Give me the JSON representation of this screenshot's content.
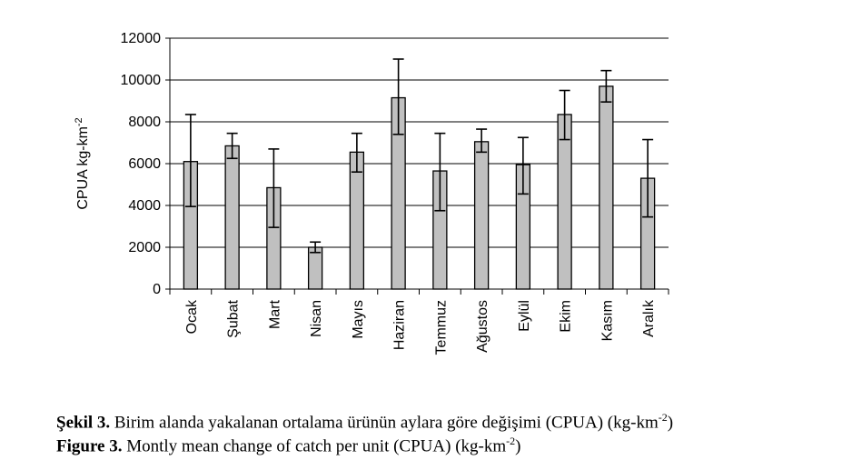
{
  "chart_data": {
    "type": "bar",
    "ylabel": "CPUA kg-km",
    "ylabel_sup": "-2",
    "ylim": [
      0,
      12000
    ],
    "yticks": [
      "0",
      "2000",
      "4000",
      "6000",
      "8000",
      "10000",
      "12000"
    ],
    "grid": true,
    "categories": [
      "Ocak",
      "Şubat",
      "Mart",
      "Nisan",
      "Mayıs",
      "Haziran",
      "Temmuz",
      "Ağustos",
      "Eylül",
      "Ekim",
      "Kasım",
      "Aralık"
    ],
    "values": [
      6100,
      6850,
      4850,
      2000,
      6550,
      9150,
      5650,
      7050,
      5950,
      8350,
      9700,
      5300
    ],
    "error_low": [
      3950,
      6250,
      2950,
      1750,
      5600,
      7400,
      3750,
      6550,
      4550,
      7150,
      8950,
      3450
    ],
    "error_high": [
      8350,
      7450,
      6700,
      2250,
      7450,
      11000,
      7450,
      7650,
      7250,
      9500,
      10450,
      7150
    ],
    "bar_color": "#c0c0c0"
  },
  "caption": {
    "line1_bold": "Şekil 3.",
    "line1_text": " Birim alanda yakalanan ortalama ürünün aylara göre değişimi (CPUA) (kg-km",
    "line1_sup": "-2",
    "line1_end": ")",
    "line2_bold": "Figure 3.",
    "line2_text": " Montly mean change of catch per unit (CPUA) (kg-km",
    "line2_sup": "-2",
    "line2_end": ")"
  }
}
